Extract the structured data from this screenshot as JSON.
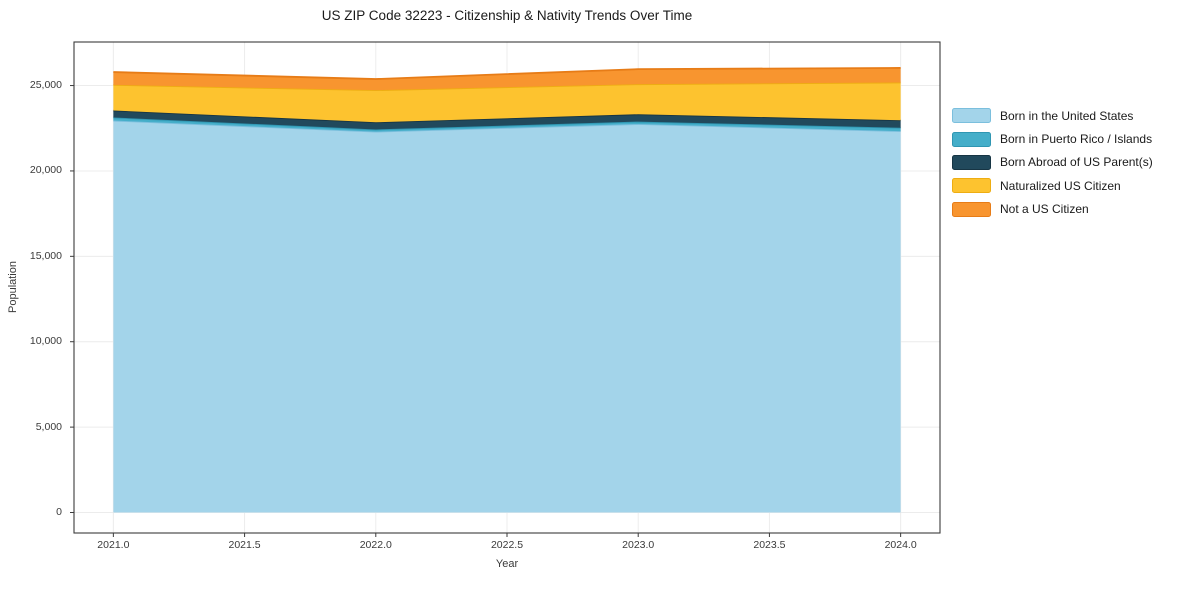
{
  "title": "US ZIP Code 32223 - Citizenship & Nativity Trends Over Time",
  "chart_data": {
    "type": "area",
    "stacked": true,
    "title": "US ZIP Code 32223 - Citizenship & Nativity Trends Over Time",
    "xlabel": "Year",
    "ylabel": "Population",
    "x": [
      2021,
      2022,
      2023,
      2024
    ],
    "series": [
      {
        "name": "Born in the United States",
        "color": "#a3d4ea",
        "edge_color": "#7bbfdd",
        "values": [
          22950,
          22300,
          22750,
          22330
        ]
      },
      {
        "name": "Born in Puerto Rico / Islands",
        "color": "#45aec9",
        "edge_color": "#2f96b2",
        "values": [
          180,
          130,
          140,
          200
        ]
      },
      {
        "name": "Born Abroad of US Parent(s)",
        "color": "#21495c",
        "edge_color": "#173544",
        "values": [
          410,
          420,
          430,
          440
        ]
      },
      {
        "name": "Naturalized US Citizen",
        "color": "#fdc32f",
        "edge_color": "#eead12",
        "values": [
          1500,
          1880,
          1760,
          2210
        ]
      },
      {
        "name": "Not a US Citizen",
        "color": "#f8952f",
        "edge_color": "#e77c17",
        "values": [
          750,
          650,
          880,
          850
        ]
      }
    ],
    "stacked_totals": [
      25790,
      25380,
      25960,
      26030
    ],
    "xlim": [
      2020.85,
      2024.15
    ],
    "ylim": [
      -1200,
      27550
    ],
    "xticks": {
      "values": [
        2021.0,
        2021.5,
        2022.0,
        2022.5,
        2023.0,
        2023.5,
        2024.0
      ],
      "labels": [
        "2021.0",
        "2021.5",
        "2022.0",
        "2022.5",
        "2023.0",
        "2023.5",
        "2024.0"
      ]
    },
    "yticks": {
      "values": [
        0,
        5000,
        10000,
        15000,
        20000,
        25000
      ],
      "labels": [
        "0",
        "5,000",
        "10,000",
        "15,000",
        "20,000",
        "25,000"
      ]
    },
    "grid": true,
    "grid_color": "#ececec",
    "spine_color": "#3b3b3b",
    "legend_position": "right"
  }
}
